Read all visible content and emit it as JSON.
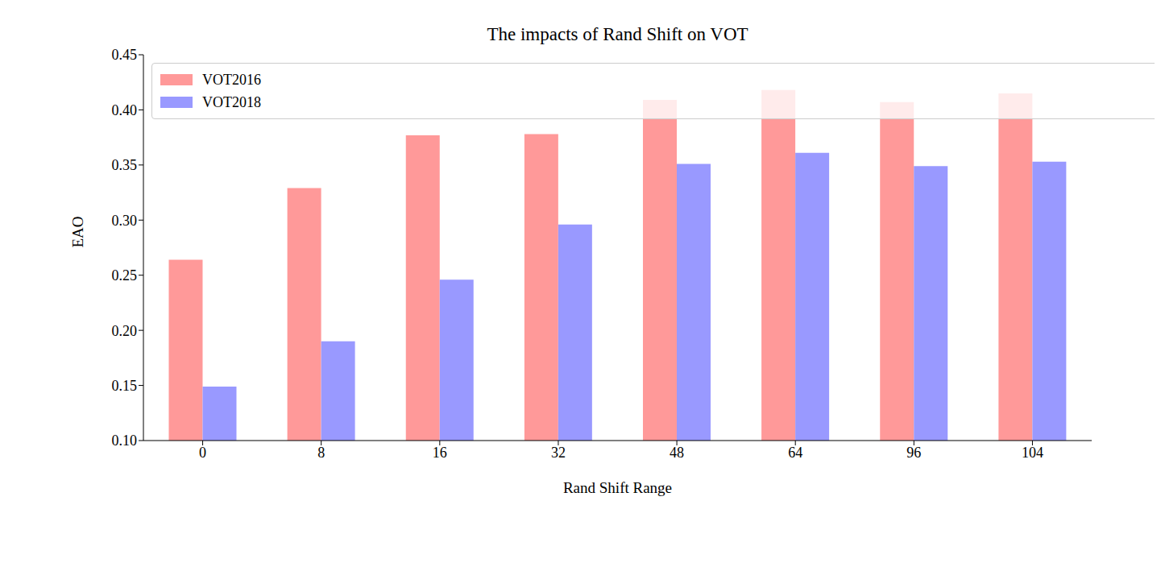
{
  "chart_data": {
    "type": "bar",
    "title": "The impacts of Rand Shift on VOT",
    "x_label": "Rand Shift Range",
    "y_label": "EAO",
    "categories": [
      "0",
      "8",
      "16",
      "32",
      "48",
      "64",
      "96",
      "104"
    ],
    "series": [
      {
        "name": "VOT2016",
        "color": "#ff9999",
        "values": [
          0.264,
          0.329,
          0.377,
          0.378,
          0.409,
          0.418,
          0.407,
          0.415
        ]
      },
      {
        "name": "VOT2018",
        "color": "#9999ff",
        "values": [
          0.149,
          0.19,
          0.246,
          0.296,
          0.351,
          0.361,
          0.349,
          0.353
        ]
      }
    ],
    "ylim": [
      0.1,
      0.45
    ],
    "yticks": [
      {
        "value": 0.1,
        "label": "0.10"
      },
      0.15,
      {
        "value": 0.2,
        "label": "0.20"
      },
      0.25,
      {
        "value": 0.3,
        "label": "0.30"
      },
      0.35,
      {
        "value": 0.4,
        "label": "0.40"
      },
      0.45
    ],
    "legend": "upper left",
    "grid": false
  }
}
